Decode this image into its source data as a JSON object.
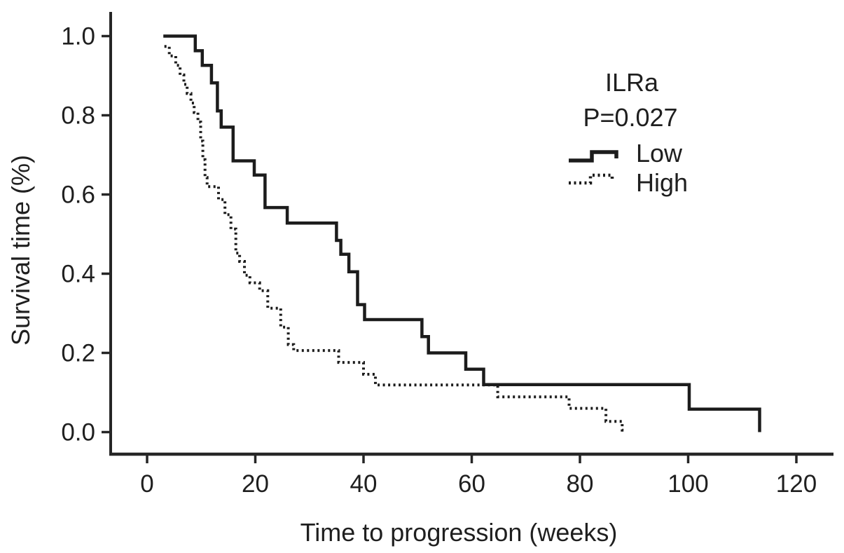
{
  "figure": {
    "background": "#ffffff",
    "text_color": "#1f1f1f"
  },
  "chart_data": {
    "type": "line",
    "subtype": "kaplan-meier-step",
    "title": "ILRa",
    "pvalue_label": "P=0.027",
    "xlabel": "Time to progression (weeks)",
    "ylabel": "Survival time (%)",
    "xlim": [
      -7,
      127
    ],
    "ylim": [
      0,
      1.0
    ],
    "x_ticks": [
      0,
      20,
      40,
      60,
      80,
      100,
      120
    ],
    "x_tick_labels": [
      "0",
      "20",
      "40",
      "60",
      "80",
      "100",
      "120"
    ],
    "y_ticks": [
      0,
      0.2,
      0.4,
      0.6,
      0.8,
      1.0
    ],
    "y_tick_labels": [
      "0.0",
      "0.2",
      "0.4",
      "0.6",
      "0.8",
      "1.0"
    ],
    "grid": false,
    "legend_position": "upper-right",
    "axis_color": "#262626",
    "series": [
      {
        "name": "Low",
        "style": "solid",
        "color": "#1c1c1c",
        "points": [
          [
            3.0,
            1.0
          ],
          [
            8.9,
            0.963
          ],
          [
            10.2,
            0.926
          ],
          [
            11.9,
            0.882
          ],
          [
            13.0,
            0.811
          ],
          [
            13.7,
            0.77
          ],
          [
            15.9,
            0.685
          ],
          [
            19.8,
            0.649
          ],
          [
            21.8,
            0.567
          ],
          [
            25.9,
            0.528
          ],
          [
            35.0,
            0.484
          ],
          [
            35.8,
            0.449
          ],
          [
            37.3,
            0.405
          ],
          [
            38.9,
            0.322
          ],
          [
            40.2,
            0.284
          ],
          [
            50.8,
            0.241
          ],
          [
            52.0,
            0.2
          ],
          [
            58.9,
            0.159
          ],
          [
            62.2,
            0.12
          ],
          [
            100.2,
            0.058
          ],
          [
            113.2,
            0.0
          ]
        ]
      },
      {
        "name": "High",
        "style": "dotted",
        "color": "#1c1c1c",
        "points": [
          [
            3.2,
            0.974
          ],
          [
            4.1,
            0.95
          ],
          [
            5.3,
            0.926
          ],
          [
            6.1,
            0.902
          ],
          [
            6.8,
            0.878
          ],
          [
            7.4,
            0.855
          ],
          [
            8.1,
            0.831
          ],
          [
            8.7,
            0.807
          ],
          [
            9.4,
            0.783
          ],
          [
            9.9,
            0.735
          ],
          [
            10.3,
            0.688
          ],
          [
            10.7,
            0.643
          ],
          [
            11.1,
            0.62
          ],
          [
            13.2,
            0.587
          ],
          [
            14.4,
            0.549
          ],
          [
            15.5,
            0.513
          ],
          [
            16.4,
            0.452
          ],
          [
            17.1,
            0.431
          ],
          [
            18.0,
            0.396
          ],
          [
            19.0,
            0.377
          ],
          [
            20.8,
            0.357
          ],
          [
            22.3,
            0.313
          ],
          [
            24.7,
            0.265
          ],
          [
            26.1,
            0.221
          ],
          [
            27.1,
            0.206
          ],
          [
            35.4,
            0.176
          ],
          [
            40.0,
            0.146
          ],
          [
            42.2,
            0.119
          ],
          [
            64.8,
            0.089
          ],
          [
            78.0,
            0.06
          ],
          [
            84.8,
            0.027
          ],
          [
            87.8,
            0.005
          ],
          [
            88.5,
            0.005
          ]
        ]
      }
    ]
  }
}
